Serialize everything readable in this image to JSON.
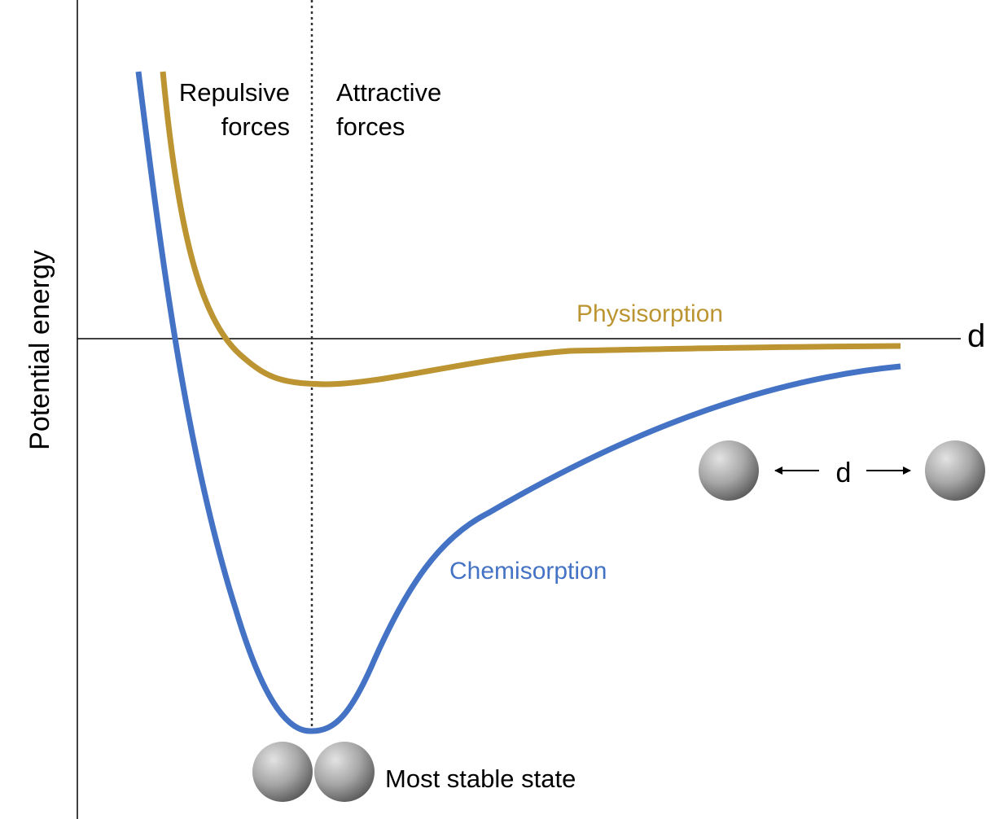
{
  "axes": {
    "y_label": "Potential energy",
    "x_label": "d"
  },
  "regions": {
    "repulsive_line1": "Repulsive",
    "repulsive_line2": "forces",
    "attractive_line1": "Attractive",
    "attractive_line2": "forces"
  },
  "curves": {
    "physisorption": {
      "label": "Physisorption",
      "color": "#BC9532"
    },
    "chemisorption": {
      "label": "Chemisorption",
      "color": "#4472C4"
    }
  },
  "molecule_separation": {
    "label": "d"
  },
  "stable_state": {
    "label": "Most stable state"
  },
  "colors": {
    "axis": "#000000",
    "sphere_light": "#d9d9d9",
    "sphere_dark": "#5a5a5a"
  }
}
